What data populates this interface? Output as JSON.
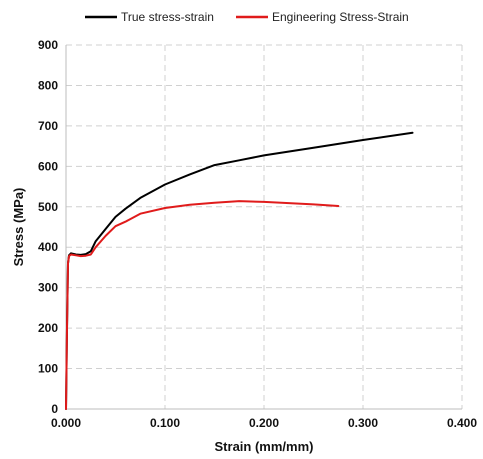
{
  "chart_data": {
    "type": "line",
    "title": "",
    "xlabel": "Strain (mm/mm)",
    "ylabel": "Stress (MPa)",
    "xlim": [
      0,
      0.4
    ],
    "ylim": [
      0,
      900
    ],
    "x_ticks": [
      "0.000",
      "0.100",
      "0.200",
      "0.300",
      "0.400"
    ],
    "y_ticks": [
      "0",
      "100",
      "200",
      "300",
      "400",
      "500",
      "600",
      "700",
      "800",
      "900"
    ],
    "grid": true,
    "legend_position": "top",
    "series": [
      {
        "name": "True stress-strain",
        "color": "#000000",
        "x": [
          0,
          0.001,
          0.002,
          0.003,
          0.005,
          0.01,
          0.015,
          0.02,
          0.025,
          0.03,
          0.04,
          0.05,
          0.06,
          0.075,
          0.1,
          0.125,
          0.15,
          0.175,
          0.2,
          0.25,
          0.3,
          0.35
        ],
        "y": [
          0,
          200,
          360,
          380,
          385,
          382,
          381,
          383,
          390,
          415,
          445,
          475,
          495,
          522,
          555,
          580,
          603,
          615,
          627,
          646,
          665,
          683
        ]
      },
      {
        "name": "Engineering Stress-Strain",
        "color": "#e01b1b",
        "x": [
          0,
          0.001,
          0.002,
          0.003,
          0.005,
          0.01,
          0.015,
          0.02,
          0.025,
          0.03,
          0.04,
          0.05,
          0.06,
          0.075,
          0.1,
          0.125,
          0.15,
          0.175,
          0.2,
          0.225,
          0.25,
          0.275
        ],
        "y": [
          0,
          200,
          360,
          378,
          382,
          380,
          378,
          379,
          382,
          400,
          428,
          452,
          463,
          483,
          497,
          505,
          510,
          514,
          512,
          509,
          506,
          502
        ]
      }
    ]
  }
}
